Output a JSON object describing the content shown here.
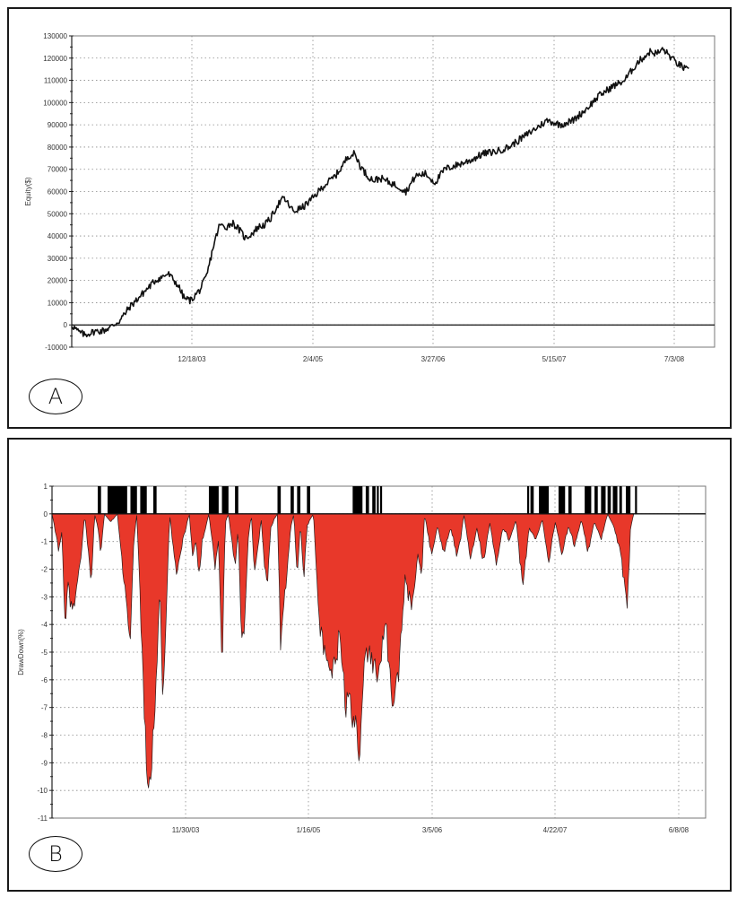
{
  "panels": [
    {
      "id": "A",
      "label": "A"
    },
    {
      "id": "B",
      "label": "B"
    }
  ],
  "colors": {
    "equity_line": "#111111",
    "drawdown_fill": "#e8382a",
    "drawdown_stroke": "#2a1a1a",
    "new_high_bar": "#000000",
    "grid": "#8a8a8a",
    "frame": "#1a1a1a"
  },
  "chart_data": [
    {
      "type": "line",
      "panel": "A",
      "title": "",
      "xlabel": "",
      "ylabel": "Equity($)",
      "ylim": [
        -10000,
        130000
      ],
      "yticks": [
        -10000,
        0,
        10000,
        20000,
        30000,
        40000,
        50000,
        60000,
        70000,
        80000,
        90000,
        100000,
        110000,
        120000,
        130000
      ],
      "xtick_labels": [
        "12/18/03",
        "2/4/05",
        "3/27/06",
        "5/15/07",
        "7/3/08"
      ],
      "grid": true,
      "zero_line": true,
      "series": [
        {
          "name": "Equity",
          "x_frac": [
            0.0,
            0.01,
            0.02,
            0.035,
            0.05,
            0.06,
            0.075,
            0.09,
            0.11,
            0.13,
            0.15,
            0.165,
            0.175,
            0.185,
            0.2,
            0.21,
            0.22,
            0.23,
            0.24,
            0.25,
            0.26,
            0.27,
            0.28,
            0.29,
            0.3,
            0.31,
            0.32,
            0.33,
            0.345,
            0.36,
            0.375,
            0.39,
            0.41,
            0.42,
            0.43,
            0.44,
            0.45,
            0.46,
            0.47,
            0.48,
            0.495,
            0.51,
            0.52,
            0.535,
            0.55,
            0.565,
            0.58,
            0.6,
            0.62,
            0.64,
            0.66,
            0.68,
            0.7,
            0.72,
            0.74,
            0.76,
            0.78,
            0.8,
            0.82,
            0.84,
            0.86,
            0.88,
            0.9,
            0.91,
            0.92,
            0.93,
            0.94,
            0.95,
            0.96
          ],
          "values": [
            0,
            -3000,
            -4500,
            -3000,
            -2500,
            -1000,
            2000,
            8000,
            14000,
            20000,
            23000,
            18000,
            12000,
            11000,
            16000,
            22000,
            35000,
            45000,
            44000,
            46000,
            43000,
            39000,
            41000,
            44000,
            45000,
            48000,
            54000,
            57000,
            51000,
            53000,
            57000,
            62000,
            67000,
            71000,
            76000,
            77000,
            71000,
            67000,
            65000,
            66000,
            64000,
            62000,
            60000,
            67000,
            68000,
            64000,
            70000,
            72000,
            74000,
            77000,
            78000,
            80000,
            84000,
            88000,
            92000,
            90000,
            92000,
            97000,
            103000,
            107000,
            110000,
            118000,
            123000,
            122000,
            124000,
            121000,
            118000,
            116000,
            114000
          ]
        }
      ]
    },
    {
      "type": "area",
      "panel": "B",
      "title": "",
      "xlabel": "",
      "ylabel": "DrawDown(%)",
      "ylim": [
        -11,
        1
      ],
      "yticks": [
        1,
        0,
        -1,
        -2,
        -3,
        -4,
        -5,
        -6,
        -7,
        -8,
        -9,
        -10,
        -11
      ],
      "xtick_labels": [
        "11/30/03",
        "1/16/05",
        "3/5/06",
        "4/22/07",
        "6/8/08"
      ],
      "grid": true,
      "series": [
        {
          "name": "Drawdown (%)",
          "x_frac": [
            0.0,
            0.01,
            0.015,
            0.02,
            0.025,
            0.03,
            0.035,
            0.04,
            0.045,
            0.05,
            0.06,
            0.065,
            0.07,
            0.075,
            0.08,
            0.09,
            0.1,
            0.12,
            0.125,
            0.13,
            0.14,
            0.145,
            0.15,
            0.16,
            0.165,
            0.17,
            0.18,
            0.19,
            0.2,
            0.205,
            0.21,
            0.215,
            0.22,
            0.225,
            0.23,
            0.235,
            0.24,
            0.25,
            0.255,
            0.26,
            0.265,
            0.27,
            0.28,
            0.285,
            0.29,
            0.295,
            0.3,
            0.305,
            0.31,
            0.32,
            0.325,
            0.33,
            0.335,
            0.34,
            0.345,
            0.35,
            0.36,
            0.365,
            0.37,
            0.375,
            0.38,
            0.385,
            0.39,
            0.395,
            0.4,
            0.41,
            0.42,
            0.43,
            0.44,
            0.45,
            0.455,
            0.46,
            0.465,
            0.47,
            0.475,
            0.48,
            0.49,
            0.5,
            0.51,
            0.52,
            0.53,
            0.54,
            0.55,
            0.56,
            0.565,
            0.57,
            0.58,
            0.59,
            0.6,
            0.61,
            0.62,
            0.625,
            0.63,
            0.64,
            0.65,
            0.66,
            0.67,
            0.68,
            0.69,
            0.7,
            0.71,
            0.72,
            0.73,
            0.74,
            0.75,
            0.76,
            0.77,
            0.78,
            0.79,
            0.8,
            0.81,
            0.82,
            0.83,
            0.84,
            0.85,
            0.86,
            0.87,
            0.88,
            0.885,
            0.89,
            0.9,
            0.91,
            0.92,
            0.93,
            0.935,
            0.94,
            0.95,
            0.96,
            0.97,
            0.975,
            0.98,
            0.985,
            0.99,
            1.0
          ],
          "values": [
            0,
            -1.3,
            -0.7,
            -4.4,
            -2.5,
            -3.7,
            -3.3,
            -2.5,
            -1.5,
            0,
            -2.6,
            0,
            -0.5,
            -1.5,
            0,
            -0.3,
            0,
            -5.0,
            -1.0,
            0,
            -6.5,
            -9.5,
            -10.2,
            -6.0,
            -2.5,
            -7.2,
            0,
            -2.3,
            -1.0,
            -0.5,
            0,
            -1.5,
            -1.0,
            -2.3,
            -1.0,
            -0.5,
            0,
            -2.0,
            -1.0,
            -5.9,
            -0.3,
            0,
            -2.0,
            -0.5,
            -4.9,
            -3.9,
            -1.0,
            0,
            -2.3,
            -0.2,
            -2.0,
            -2.5,
            -0.5,
            -0.2,
            0,
            -5.0,
            -2.0,
            -0.5,
            0,
            -2.4,
            -0.3,
            -2.5,
            -0.5,
            -0.2,
            0,
            -4.3,
            -5.8,
            -5.9,
            -4.6,
            -7.2,
            -6.6,
            -8.0,
            -7.5,
            -8.9,
            -7.0,
            -5.0,
            -5.5,
            -6.0,
            -3.8,
            -7.2,
            -6.0,
            -2.5,
            -3.5,
            -1.5,
            -2.5,
            0,
            -1.5,
            -0.5,
            -1.5,
            -0.5,
            -1.6,
            -1.0,
            0,
            -1.7,
            -0.5,
            -1.8,
            -0.3,
            -2.0,
            -0.5,
            -1.0,
            -0.2,
            -2.8,
            -0.5,
            -1.0,
            -0.2,
            -1.8,
            -0.3,
            -1.5,
            -0.5,
            -1.2,
            -0.2,
            -1.4,
            -0.3,
            -1.0,
            0,
            -0.5,
            -1.5,
            -3.7,
            -0.5,
            0,
            0,
            0,
            0,
            0,
            0,
            0,
            0,
            0,
            0,
            0,
            0,
            0,
            0
          ],
          "new_equity_high_bars_x_frac": [
            [
              0.07,
              0.075
            ],
            [
              0.085,
              0.115
            ],
            [
              0.12,
              0.13
            ],
            [
              0.135,
              0.145
            ],
            [
              0.155,
              0.16
            ],
            [
              0.24,
              0.255
            ],
            [
              0.26,
              0.27
            ],
            [
              0.28,
              0.285
            ],
            [
              0.345,
              0.35
            ],
            [
              0.365,
              0.37
            ],
            [
              0.375,
              0.38
            ],
            [
              0.39,
              0.395
            ],
            [
              0.46,
              0.475
            ],
            [
              0.48,
              0.485
            ],
            [
              0.49,
              0.495
            ],
            [
              0.497,
              0.5
            ],
            [
              0.502,
              0.505
            ],
            [
              0.727,
              0.73
            ],
            [
              0.732,
              0.737
            ],
            [
              0.745,
              0.76
            ],
            [
              0.775,
              0.785
            ],
            [
              0.79,
              0.795
            ],
            [
              0.815,
              0.825
            ],
            [
              0.83,
              0.835
            ],
            [
              0.84,
              0.847
            ],
            [
              0.85,
              0.855
            ],
            [
              0.858,
              0.865
            ],
            [
              0.868,
              0.872
            ],
            [
              0.878,
              0.885
            ],
            [
              0.892,
              0.895
            ]
          ]
        }
      ]
    }
  ]
}
